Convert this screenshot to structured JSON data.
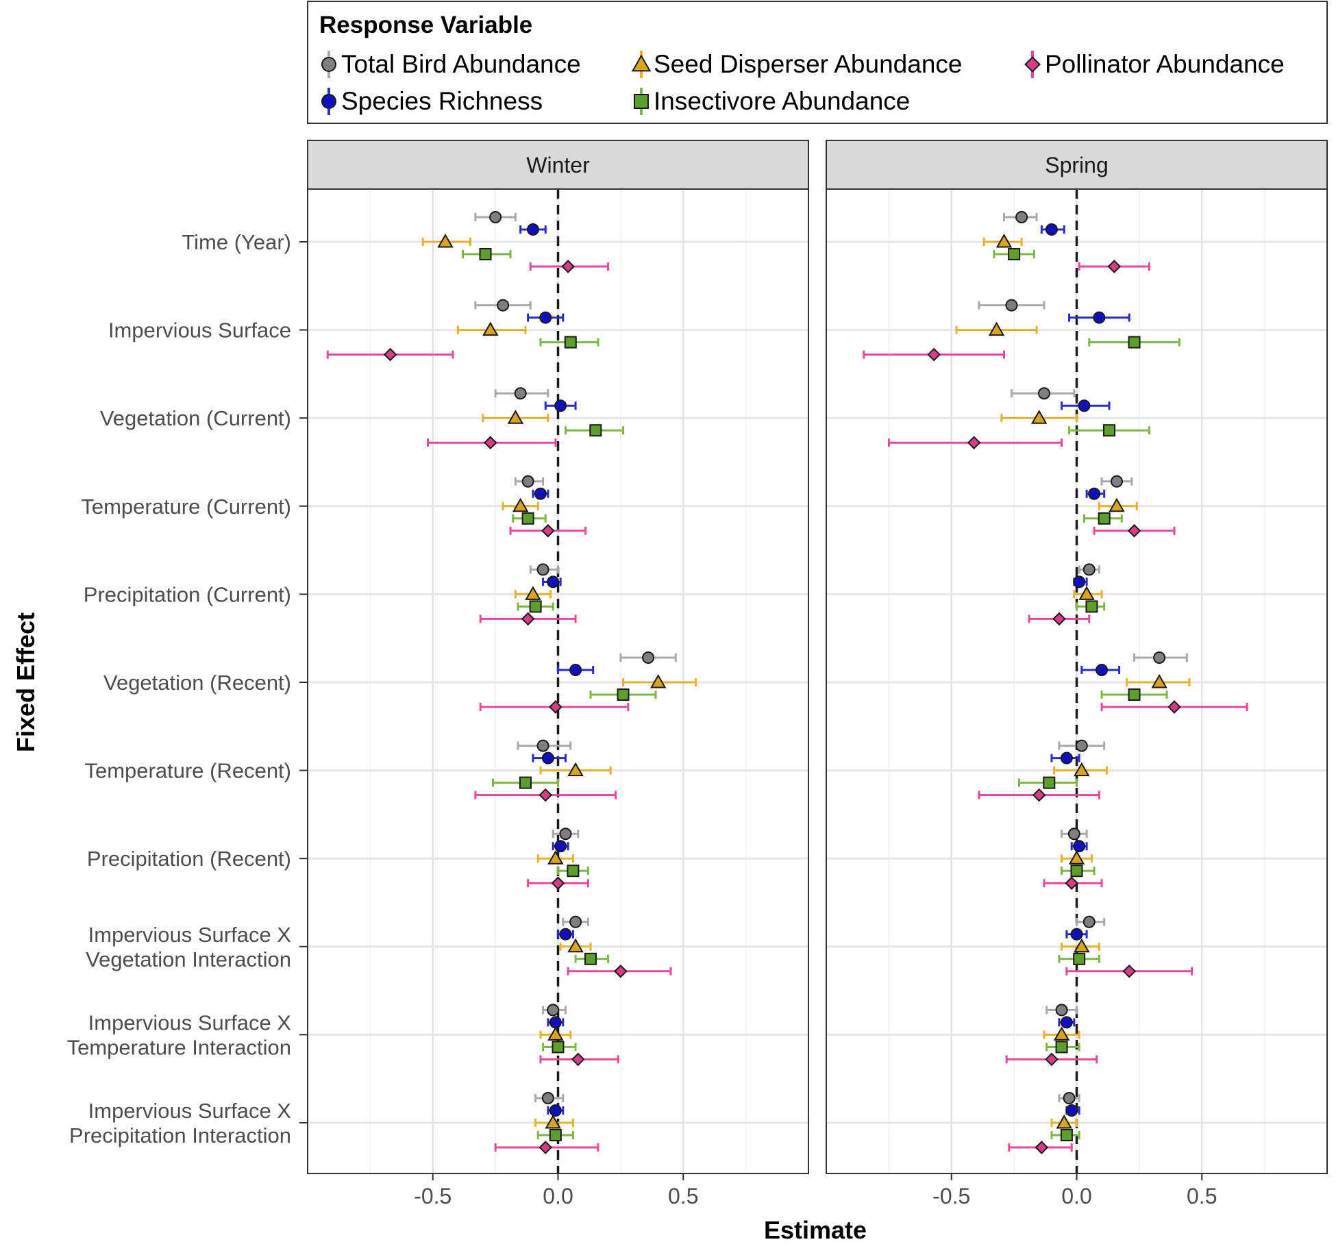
{
  "chart_data": {
    "type": "scatter",
    "subtype": "coefficient-plot-with-error-bars",
    "xlabel": "Estimate",
    "ylabel": "Fixed Effect",
    "xlim": [
      -1.0,
      1.0
    ],
    "xticks": [
      -0.5,
      0.0,
      0.5
    ],
    "xtick_labels": [
      "-0.5",
      "0.0",
      "0.5"
    ],
    "reference_line": 0,
    "grid": true,
    "legend": {
      "title": "Response Variable",
      "placement": "top",
      "entries": [
        {
          "label": "Total Bird Abundance",
          "shape": "circle",
          "color": "#a9a9a9",
          "fill": "#7f7f7f"
        },
        {
          "label": "Seed Disperser Abundance",
          "shape": "triangle",
          "color": "#e8b12c",
          "fill": "#d9a520"
        },
        {
          "label": "Pollinator Abundance",
          "shape": "diamond",
          "color": "#e8479a",
          "fill": "#d63d86"
        },
        {
          "label": "Species Richness",
          "shape": "circle",
          "color": "#2a2ac8",
          "fill": "#1010c0"
        },
        {
          "label": "Insectivore Abundance",
          "shape": "square",
          "color": "#7cb843",
          "fill": "#5e9e2c"
        }
      ]
    },
    "panels": [
      "Winter",
      "Spring"
    ],
    "categories": [
      [
        "Time (Year)"
      ],
      [
        "Impervious Surface"
      ],
      [
        "Vegetation (Current)"
      ],
      [
        "Temperature (Current)"
      ],
      [
        "Precipitation (Current)"
      ],
      [
        "Vegetation (Recent)"
      ],
      [
        "Temperature (Recent)"
      ],
      [
        "Precipitation (Recent)"
      ],
      [
        "Impervious Surface X",
        "Vegetation Interaction"
      ],
      [
        "Impervious Surface X",
        "Temperature Interaction"
      ],
      [
        "Impervious Surface X",
        "Precipitation Interaction"
      ]
    ],
    "series": [
      {
        "name": "Total Bird Abundance",
        "winter": [
          [
            -0.25,
            -0.33,
            -0.17
          ],
          [
            -0.22,
            -0.33,
            -0.11
          ],
          [
            -0.15,
            -0.25,
            -0.04
          ],
          [
            -0.12,
            -0.17,
            -0.06
          ],
          [
            -0.06,
            -0.11,
            0.0
          ],
          [
            0.36,
            0.25,
            0.47
          ],
          [
            -0.06,
            -0.16,
            0.05
          ],
          [
            0.03,
            -0.02,
            0.08
          ],
          [
            0.07,
            0.02,
            0.12
          ],
          [
            -0.02,
            -0.06,
            0.03
          ],
          [
            -0.04,
            -0.09,
            0.02
          ]
        ],
        "spring": [
          [
            -0.22,
            -0.29,
            -0.16
          ],
          [
            -0.26,
            -0.39,
            -0.13
          ],
          [
            -0.13,
            -0.26,
            -0.01
          ],
          [
            0.16,
            0.1,
            0.22
          ],
          [
            0.05,
            0.01,
            0.09
          ],
          [
            0.33,
            0.23,
            0.44
          ],
          [
            0.02,
            -0.07,
            0.11
          ],
          [
            -0.01,
            -0.06,
            0.04
          ],
          [
            0.05,
            0.0,
            0.11
          ],
          [
            -0.06,
            -0.12,
            0.0
          ],
          [
            -0.03,
            -0.07,
            0.01
          ]
        ]
      },
      {
        "name": "Species Richness",
        "winter": [
          [
            -0.1,
            -0.15,
            -0.05
          ],
          [
            -0.05,
            -0.12,
            0.02
          ],
          [
            0.01,
            -0.05,
            0.07
          ],
          [
            -0.07,
            -0.1,
            -0.04
          ],
          [
            -0.02,
            -0.06,
            0.01
          ],
          [
            0.07,
            0.0,
            0.14
          ],
          [
            -0.04,
            -0.1,
            0.03
          ],
          [
            0.01,
            -0.02,
            0.04
          ],
          [
            0.03,
            0.0,
            0.06
          ],
          [
            -0.01,
            -0.04,
            0.02
          ],
          [
            -0.01,
            -0.04,
            0.02
          ]
        ],
        "spring": [
          [
            -0.1,
            -0.14,
            -0.05
          ],
          [
            0.09,
            -0.03,
            0.21
          ],
          [
            0.03,
            -0.06,
            0.13
          ],
          [
            0.07,
            0.04,
            0.11
          ],
          [
            0.01,
            -0.01,
            0.04
          ],
          [
            0.1,
            0.02,
            0.17
          ],
          [
            -0.04,
            -0.1,
            0.01
          ],
          [
            0.01,
            -0.02,
            0.04
          ],
          [
            0.0,
            -0.04,
            0.04
          ],
          [
            -0.04,
            -0.07,
            -0.01
          ],
          [
            -0.02,
            -0.04,
            0.01
          ]
        ]
      },
      {
        "name": "Seed Disperser Abundance",
        "winter": [
          [
            -0.45,
            -0.54,
            -0.35
          ],
          [
            -0.27,
            -0.4,
            -0.13
          ],
          [
            -0.17,
            -0.3,
            -0.04
          ],
          [
            -0.15,
            -0.22,
            -0.08
          ],
          [
            -0.1,
            -0.17,
            -0.03
          ],
          [
            0.4,
            0.26,
            0.55
          ],
          [
            0.07,
            -0.07,
            0.21
          ],
          [
            -0.01,
            -0.08,
            0.06
          ],
          [
            0.07,
            0.01,
            0.13
          ],
          [
            -0.01,
            -0.07,
            0.05
          ],
          [
            -0.02,
            -0.09,
            0.06
          ]
        ],
        "spring": [
          [
            -0.29,
            -0.37,
            -0.22
          ],
          [
            -0.32,
            -0.48,
            -0.16
          ],
          [
            -0.15,
            -0.3,
            0.0
          ],
          [
            0.16,
            0.09,
            0.24
          ],
          [
            0.04,
            -0.01,
            0.1
          ],
          [
            0.33,
            0.2,
            0.45
          ],
          [
            0.02,
            -0.09,
            0.12
          ],
          [
            0.0,
            -0.06,
            0.06
          ],
          [
            0.02,
            -0.06,
            0.09
          ],
          [
            -0.06,
            -0.13,
            0.01
          ],
          [
            -0.05,
            -0.1,
            0.0
          ]
        ]
      },
      {
        "name": "Insectivore Abundance",
        "winter": [
          [
            -0.29,
            -0.38,
            -0.19
          ],
          [
            0.05,
            -0.07,
            0.16
          ],
          [
            0.15,
            0.03,
            0.26
          ],
          [
            -0.12,
            -0.18,
            -0.05
          ],
          [
            -0.09,
            -0.16,
            -0.02
          ],
          [
            0.26,
            0.13,
            0.39
          ],
          [
            -0.13,
            -0.26,
            0.0
          ],
          [
            0.06,
            0.0,
            0.12
          ],
          [
            0.13,
            0.07,
            0.2
          ],
          [
            0.0,
            -0.06,
            0.07
          ],
          [
            -0.01,
            -0.08,
            0.06
          ]
        ],
        "spring": [
          [
            -0.25,
            -0.33,
            -0.17
          ],
          [
            0.23,
            0.05,
            0.41
          ],
          [
            0.13,
            -0.03,
            0.29
          ],
          [
            0.11,
            0.03,
            0.18
          ],
          [
            0.06,
            0.0,
            0.11
          ],
          [
            0.23,
            0.1,
            0.36
          ],
          [
            -0.11,
            -0.23,
            0.0
          ],
          [
            0.0,
            -0.06,
            0.07
          ],
          [
            0.01,
            -0.07,
            0.09
          ],
          [
            -0.06,
            -0.12,
            0.01
          ],
          [
            -0.04,
            -0.1,
            0.01
          ]
        ]
      },
      {
        "name": "Pollinator Abundance",
        "winter": [
          [
            0.04,
            -0.11,
            0.2
          ],
          [
            -0.67,
            -0.92,
            -0.42
          ],
          [
            -0.27,
            -0.52,
            -0.01
          ],
          [
            -0.04,
            -0.19,
            0.11
          ],
          [
            -0.12,
            -0.31,
            0.07
          ],
          [
            -0.01,
            -0.31,
            0.28
          ],
          [
            -0.05,
            -0.33,
            0.23
          ],
          [
            0.0,
            -0.12,
            0.12
          ],
          [
            0.25,
            0.04,
            0.45
          ],
          [
            0.08,
            -0.07,
            0.24
          ],
          [
            -0.05,
            -0.25,
            0.16
          ]
        ],
        "spring": [
          [
            0.15,
            0.01,
            0.29
          ],
          [
            -0.57,
            -0.85,
            -0.29
          ],
          [
            -0.41,
            -0.75,
            -0.06
          ],
          [
            0.23,
            0.07,
            0.39
          ],
          [
            -0.07,
            -0.19,
            0.05
          ],
          [
            0.39,
            0.1,
            0.68
          ],
          [
            -0.15,
            -0.39,
            0.09
          ],
          [
            -0.02,
            -0.13,
            0.1
          ],
          [
            0.21,
            -0.04,
            0.46
          ],
          [
            -0.1,
            -0.28,
            0.08
          ],
          [
            -0.14,
            -0.27,
            -0.02
          ]
        ]
      }
    ]
  }
}
